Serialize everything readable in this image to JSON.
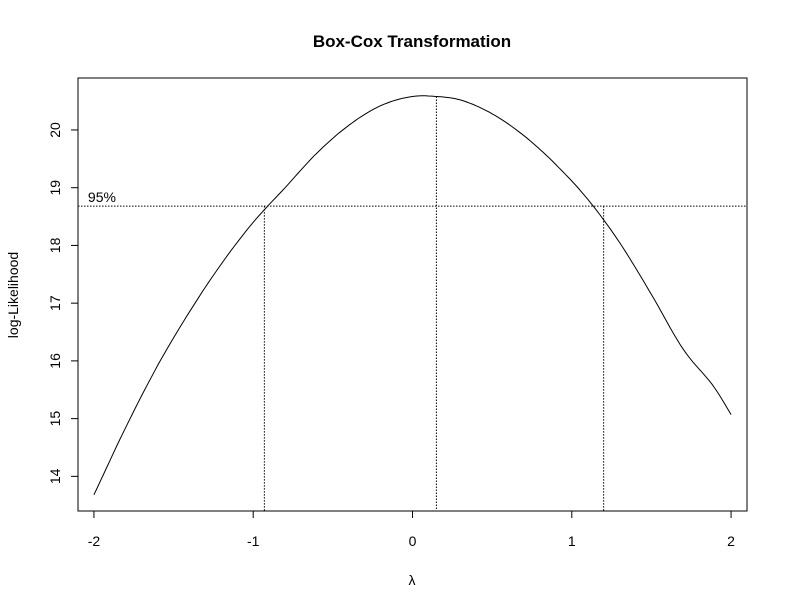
{
  "chart_data": {
    "type": "line",
    "title": "Box-Cox Transformation",
    "xlabel": "λ",
    "ylabel": "log-Likelihood",
    "xlim": [
      -2.1,
      2.1
    ],
    "ylim": [
      13.4,
      20.9
    ],
    "x_ticks": [
      -2,
      -1,
      0,
      1,
      2
    ],
    "x_tick_labels": [
      "-2",
      "-1",
      "0",
      "1",
      "2"
    ],
    "y_ticks": [
      14,
      15,
      16,
      17,
      18,
      19,
      20
    ],
    "y_tick_labels": [
      "14",
      "15",
      "16",
      "17",
      "18",
      "19",
      "20"
    ],
    "grid": false,
    "series": [
      {
        "x": [
          -2.0,
          -1.8,
          -1.6,
          -1.4,
          -1.2,
          -1.0,
          -0.8,
          -0.6,
          -0.4,
          -0.2,
          0.0,
          0.15,
          0.3,
          0.5,
          0.7,
          0.9,
          1.1,
          1.3,
          1.5,
          1.7,
          1.9,
          2.0
        ],
        "values": [
          13.68,
          14.85,
          15.92,
          16.85,
          17.68,
          18.4,
          19.0,
          19.6,
          20.08,
          20.42,
          20.58,
          20.58,
          20.52,
          20.28,
          19.9,
          19.4,
          18.8,
          18.05,
          17.15,
          16.2,
          15.52,
          15.07
        ]
      }
    ],
    "ci_level": 18.68,
    "ci_label": "95%",
    "vertical_markers": [
      -0.93,
      0.15,
      1.2
    ],
    "line_color": "#000000"
  }
}
